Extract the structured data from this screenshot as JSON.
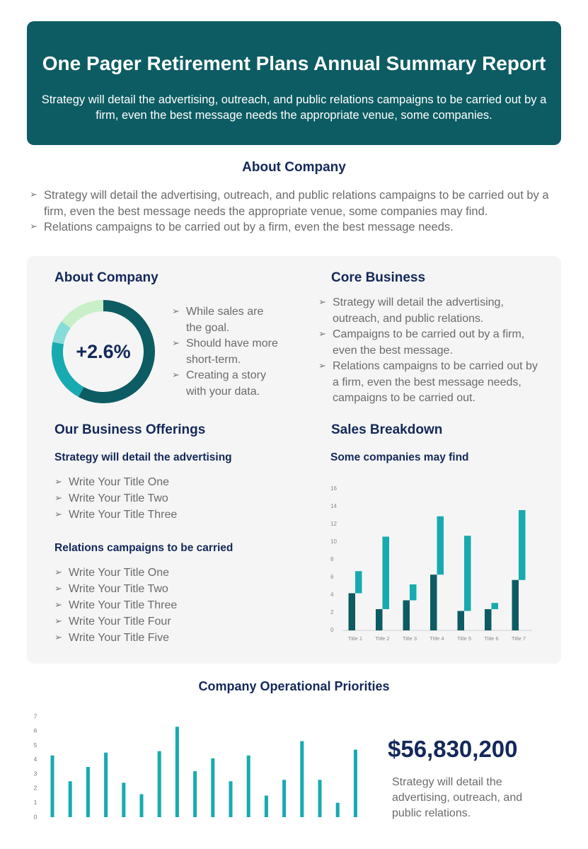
{
  "header": {
    "title": "One Pager Retirement Plans Annual Summary Report",
    "subtitle": "Strategy will detail the advertising, outreach, and public relations campaigns to be carried out by a firm,  even the best message needs the appropriate venue, some companies."
  },
  "about": {
    "title": "About Company",
    "bullets": [
      "Strategy will detail the advertising, outreach, and public relations campaigns to be carried out by a firm,  even the best message needs the appropriate venue, some companies may find.",
      "Relations campaigns to be carried out by a firm,  even the best message needs."
    ]
  },
  "about_panel": {
    "title": "About Company",
    "donut": {
      "type": "pie",
      "center_label": "+2.6%",
      "values": [
        58,
        20,
        7,
        15
      ],
      "colors": [
        "#0d5c63",
        "#17aab0",
        "#86dcd8",
        "#c8efc8"
      ]
    },
    "bullets": [
      "While sales are the goal.",
      "Should have more short-term.",
      "Creating a story with your data."
    ]
  },
  "core_business": {
    "title": "Core Business",
    "bullets": [
      "Strategy will detail the advertising, outreach, and public relations.",
      "Campaigns to be carried out by a firm,  even the best message.",
      "Relations campaigns to be carried out by a firm,  even the best message needs, campaigns to be carried out."
    ]
  },
  "offerings": {
    "title": "Our Business Offerings",
    "groups": [
      {
        "title": "Strategy will detail the advertising",
        "items": [
          "Write Your Title One",
          "Write Your Title Two",
          "Write Your Title Three"
        ]
      },
      {
        "title": "Relations campaigns to be carried",
        "items": [
          "Write Your Title One",
          "Write Your Title Two",
          "Write Your Title Three",
          "Write Your Title Four",
          "Write Your Title Five"
        ]
      }
    ]
  },
  "sales_breakdown": {
    "type": "bar",
    "title": "Sales Breakdown",
    "subtitle": "Some companies may find",
    "categories": [
      "Title 1",
      "Title 2",
      "Title 3",
      "Title 4",
      "Title 5",
      "Title 6",
      "Title 7"
    ],
    "series": [
      {
        "color": "#0d5c63",
        "values": [
          4.2,
          2.4,
          3.4,
          6.3,
          2.2,
          2.4,
          5.7
        ]
      },
      {
        "color": "#17aab0",
        "values": [
          2.5,
          8.2,
          1.8,
          6.6,
          8.5,
          0.7,
          7.9
        ]
      }
    ],
    "ylim": [
      0,
      16
    ],
    "yticks": [
      0,
      2,
      4,
      6,
      8,
      10,
      12,
      14,
      16
    ]
  },
  "priorities": {
    "type": "bar",
    "title": "Company Operational Priorities",
    "color": "#17aab0",
    "values": [
      4.3,
      2.5,
      3.5,
      4.5,
      2.4,
      1.6,
      4.6,
      6.3,
      3.2,
      4.1,
      2.5,
      4.3,
      1.5,
      2.6,
      5.3,
      2.6,
      1.0,
      4.7
    ],
    "ylim": [
      0,
      7
    ],
    "yticks": [
      0,
      1,
      2,
      3,
      4,
      5,
      6,
      7
    ]
  },
  "summary": {
    "amount": "$56,830,200",
    "text": "Strategy will detail the advertising, outreach, and public relations."
  }
}
